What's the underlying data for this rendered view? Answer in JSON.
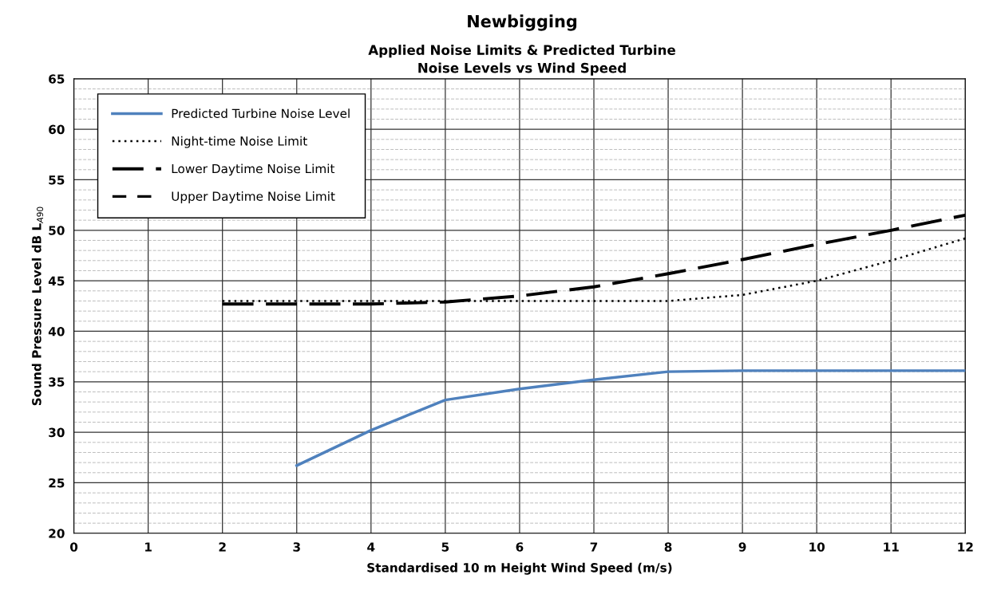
{
  "chart_data": {
    "type": "line",
    "title": "Newbigging",
    "subtitle": "Applied Noise Limits & Predicted Turbine\nNoise Levels vs Wind Speed",
    "xlabel": "Standardised 10 m Height Wind Speed (m/s)",
    "ylabel": "Sound Pressure Level dB L$_{A90}$",
    "x": [
      2,
      3,
      4,
      5,
      6,
      7,
      8,
      9,
      10,
      11,
      12
    ],
    "series": [
      {
        "name": "Predicted Turbine Noise Level",
        "color": "#4f81bd",
        "line_style": "solid",
        "values": [
          null,
          26.7,
          30.2,
          33.2,
          34.3,
          35.2,
          36.0,
          36.1,
          36.1,
          36.1,
          36.1
        ]
      },
      {
        "name": "Night-time Noise Limit",
        "color": "#000000",
        "line_style": "dotted",
        "values": [
          43.0,
          43.0,
          43.0,
          43.0,
          43.0,
          43.0,
          43.0,
          43.6,
          45.0,
          47.0,
          49.2
        ]
      },
      {
        "name": "Lower Daytime Noise Limit",
        "color": "#000000",
        "line_style": "longdash",
        "values": [
          42.7,
          42.7,
          42.7,
          42.9,
          43.5,
          44.4,
          45.7,
          47.1,
          48.6,
          50.0,
          51.5
        ]
      },
      {
        "name": "Upper Daytime Noise Limit",
        "color": "#000000",
        "line_style": "dashed",
        "values": [
          null,
          null,
          null,
          null,
          null,
          null,
          null,
          null,
          null,
          null,
          null
        ]
      }
    ],
    "xlim": [
      0,
      12
    ],
    "xticks": [
      0,
      1,
      2,
      3,
      4,
      5,
      6,
      7,
      8,
      9,
      10,
      11,
      12
    ],
    "ylim": [
      20,
      65
    ],
    "yticks": [
      20,
      25,
      30,
      35,
      40,
      45,
      50,
      55,
      60,
      65
    ],
    "grid": true,
    "legend": "top left",
    "marker": "none"
  }
}
